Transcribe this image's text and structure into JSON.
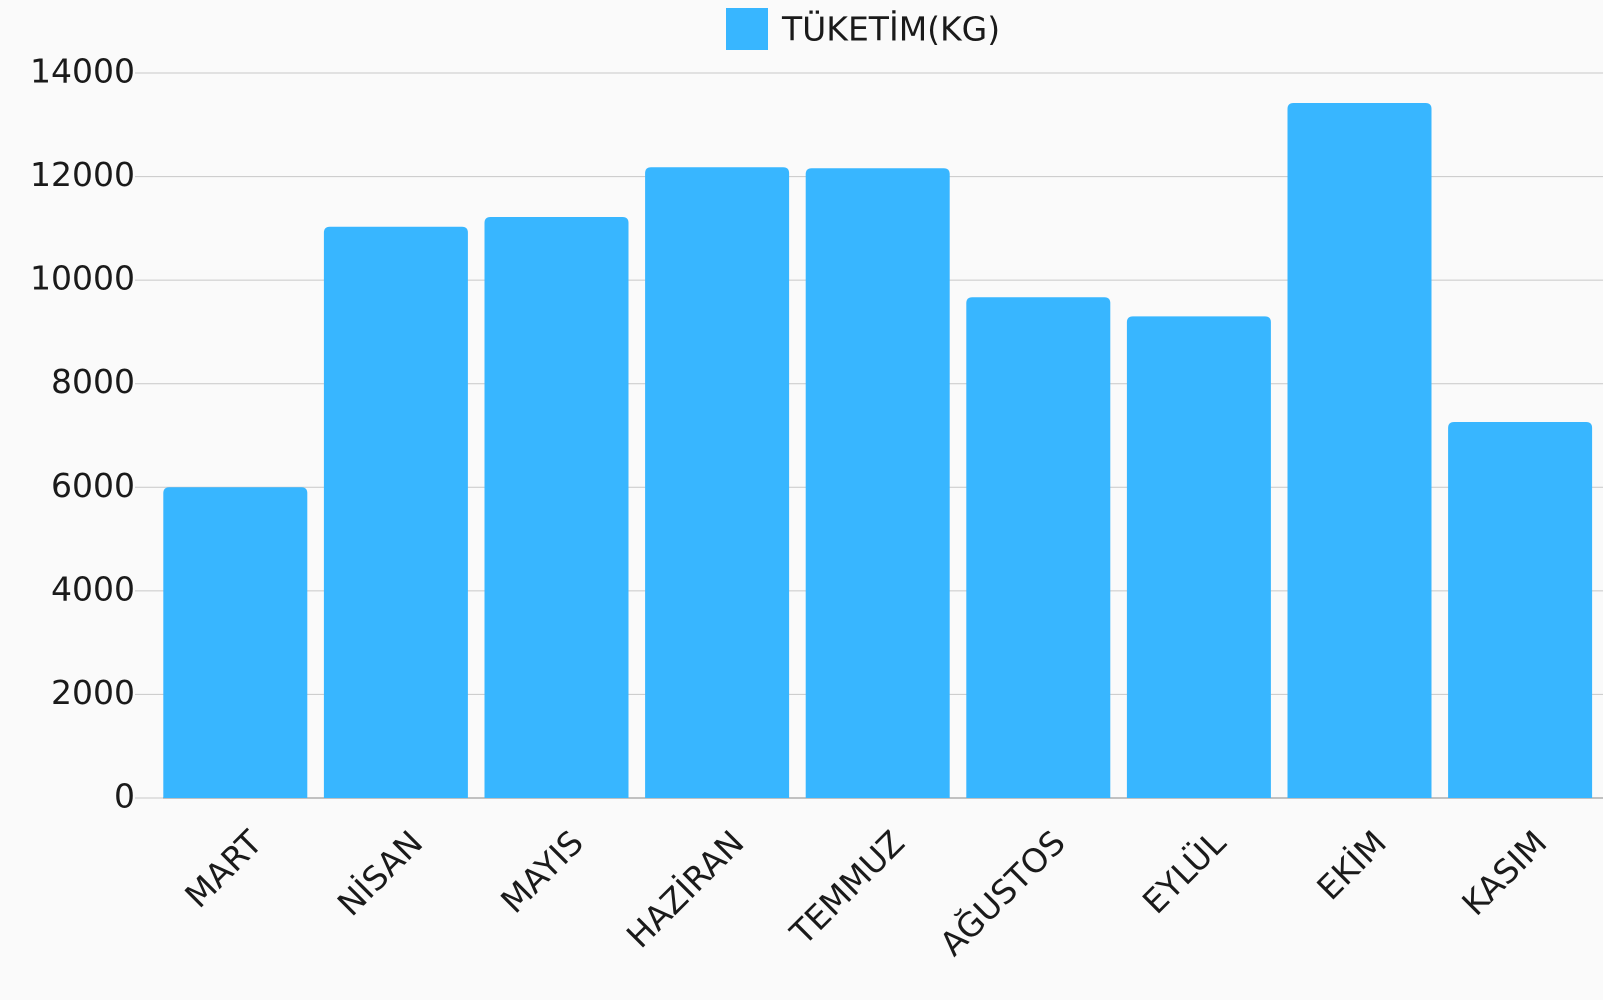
{
  "chart_data": {
    "type": "bar",
    "categories": [
      "MART",
      "NİSAN",
      "MAYIS",
      "HAZİRAN",
      "TEMMUZ",
      "AĞUSTOS",
      "EYLÜL",
      "EKİM",
      "KASIM"
    ],
    "series": [
      {
        "name": "TÜKETİM(KG)",
        "color": "#38b6ff",
        "values": [
          6000,
          11030,
          11220,
          12180,
          12160,
          9670,
          9300,
          13420,
          7260
        ]
      }
    ],
    "ylim": [
      0,
      14000
    ],
    "yticks": [
      0,
      2000,
      4000,
      6000,
      8000,
      10000,
      12000,
      14000
    ],
    "grid": true,
    "legend": "top"
  }
}
